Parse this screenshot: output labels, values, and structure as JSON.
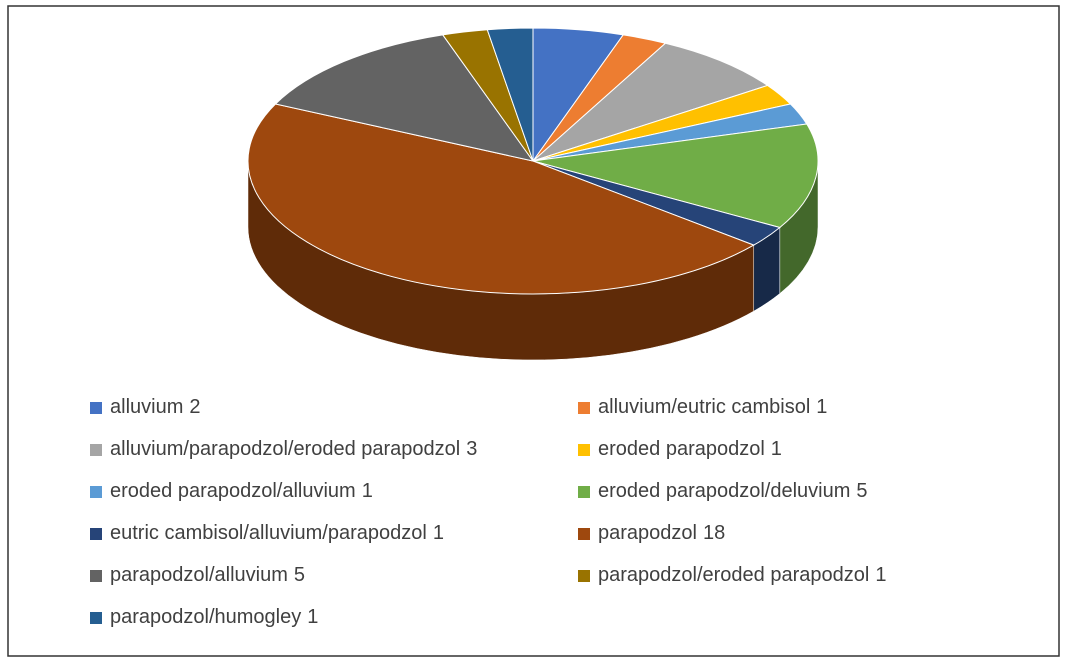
{
  "chart_data": {
    "type": "pie3d",
    "categories": [
      "alluvium",
      "alluvium/eutric cambisol",
      "alluvium/parapodzol/eroded parapodzol",
      "eroded parapodzol",
      "eroded parapodzol/alluvium",
      "eroded parapodzol/deluvium",
      "eutric cambisol/alluvium/parapodzol",
      "parapodzol",
      "parapodzol/alluvium",
      "parapodzol/eroded parapodzol",
      "parapodzol/humogley"
    ],
    "values": [
      2,
      1,
      3,
      1,
      1,
      5,
      1,
      18,
      5,
      1,
      1
    ],
    "colors": [
      "#4472c4",
      "#ed7d31",
      "#a5a5a5",
      "#ffc000",
      "#5b9bd5",
      "#70ad47",
      "#264478",
      "#9e480e",
      "#636363",
      "#997300",
      "#255e91"
    ],
    "legend": "bottom"
  }
}
